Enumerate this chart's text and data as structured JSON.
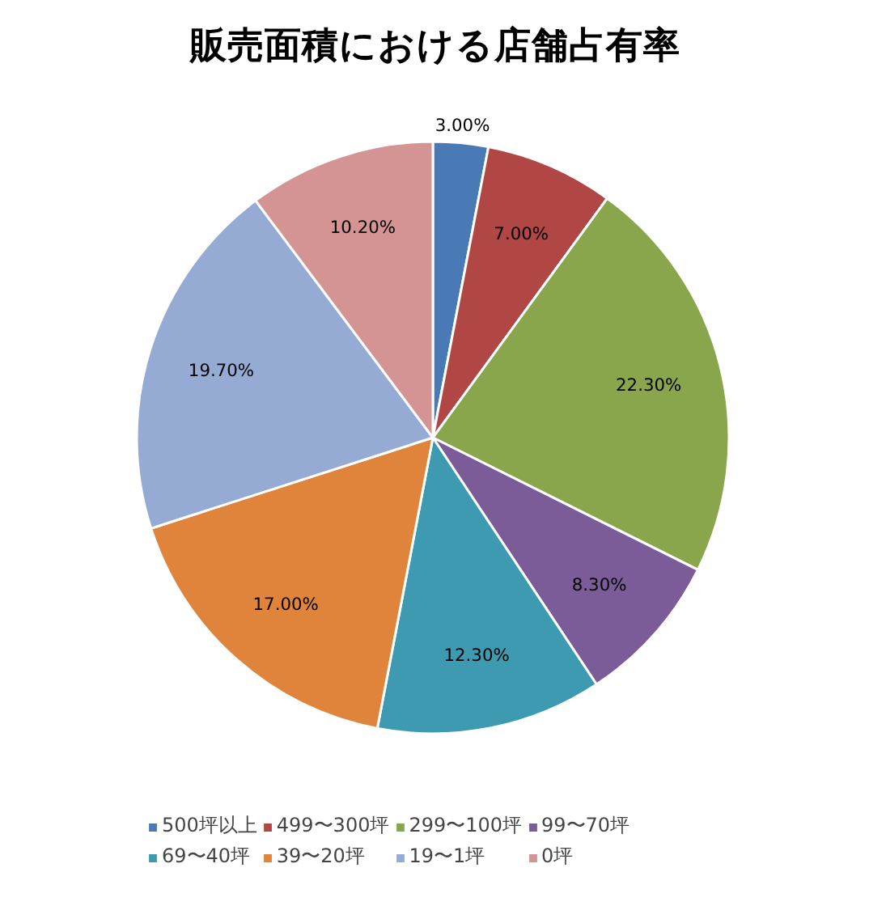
{
  "chart_data": {
    "type": "pie",
    "title": "販売面積における店舗占有率",
    "categories": [
      "500坪以上",
      "499〜300坪",
      "299〜100坪",
      "99〜70坪",
      "69〜40坪",
      "39〜20坪",
      "19〜1坪",
      "0坪"
    ],
    "values": [
      3.0,
      7.0,
      22.3,
      8.3,
      12.3,
      17.0,
      19.7,
      10.2
    ],
    "value_labels": [
      "3.00%",
      "7.00%",
      "22.30%",
      "8.30%",
      "12.30%",
      "17.00%",
      "19.70%",
      "10.20%"
    ],
    "colors": [
      "#4a7ab5",
      "#b04744",
      "#8aa64c",
      "#7b5c99",
      "#3d9ab1",
      "#e0843c",
      "#95abd4",
      "#d39493"
    ],
    "legend": "bottom"
  }
}
